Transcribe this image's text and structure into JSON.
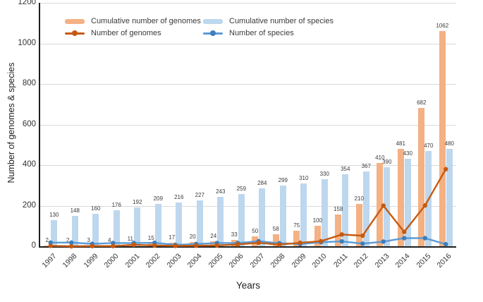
{
  "chart_data": {
    "type": "bar+line",
    "title": "",
    "xlabel": "Years",
    "ylabel": "Number of genomes & species",
    "ylim": [
      0,
      1200
    ],
    "yticks": [
      0,
      200,
      400,
      600,
      800,
      1000,
      1200
    ],
    "grid": "horizontal",
    "legend_position": "top-inside",
    "bar_value_labels": true,
    "categories": [
      "1997",
      "1998",
      "1999",
      "2000",
      "2001",
      "2002",
      "2003",
      "2004",
      "2005",
      "2006",
      "2007",
      "2008",
      "2009",
      "2010",
      "2011",
      "2012",
      "2013",
      "2014",
      "2015",
      "2016"
    ],
    "series": [
      {
        "name": "Cumulative number of genomes",
        "type": "bar",
        "color": "#F4B183",
        "values": [
          2,
          2,
          3,
          4,
          11,
          15,
          17,
          20,
          24,
          33,
          50,
          58,
          75,
          100,
          158,
          210,
          410,
          481,
          682,
          1062
        ]
      },
      {
        "name": "Cumulative number of species",
        "type": "bar",
        "color": "#BDD7EE",
        "values": [
          130,
          148,
          160,
          176,
          192,
          209,
          216,
          227,
          243,
          259,
          284,
          299,
          310,
          330,
          354,
          367,
          390,
          430,
          470,
          480
        ]
      },
      {
        "name": "Number of genomes",
        "type": "line",
        "color": "#C55A11",
        "marker_color": "#C55A11",
        "values": [
          2,
          0,
          1,
          1,
          7,
          4,
          2,
          3,
          4,
          9,
          17,
          8,
          17,
          25,
          58,
          52,
          200,
          71,
          201,
          380
        ]
      },
      {
        "name": "Number of species",
        "type": "line",
        "color": "#5B9BD5",
        "marker_color": "#3D7EBB",
        "values": [
          18,
          18,
          12,
          16,
          16,
          17,
          7,
          11,
          16,
          16,
          25,
          15,
          11,
          20,
          24,
          13,
          23,
          40,
          40,
          10
        ]
      }
    ]
  },
  "colors": {
    "gridline": "#D9D9D9",
    "axis": "#1f1f1f",
    "tick_text": "#333333",
    "value_label": "#3a3a3a"
  }
}
